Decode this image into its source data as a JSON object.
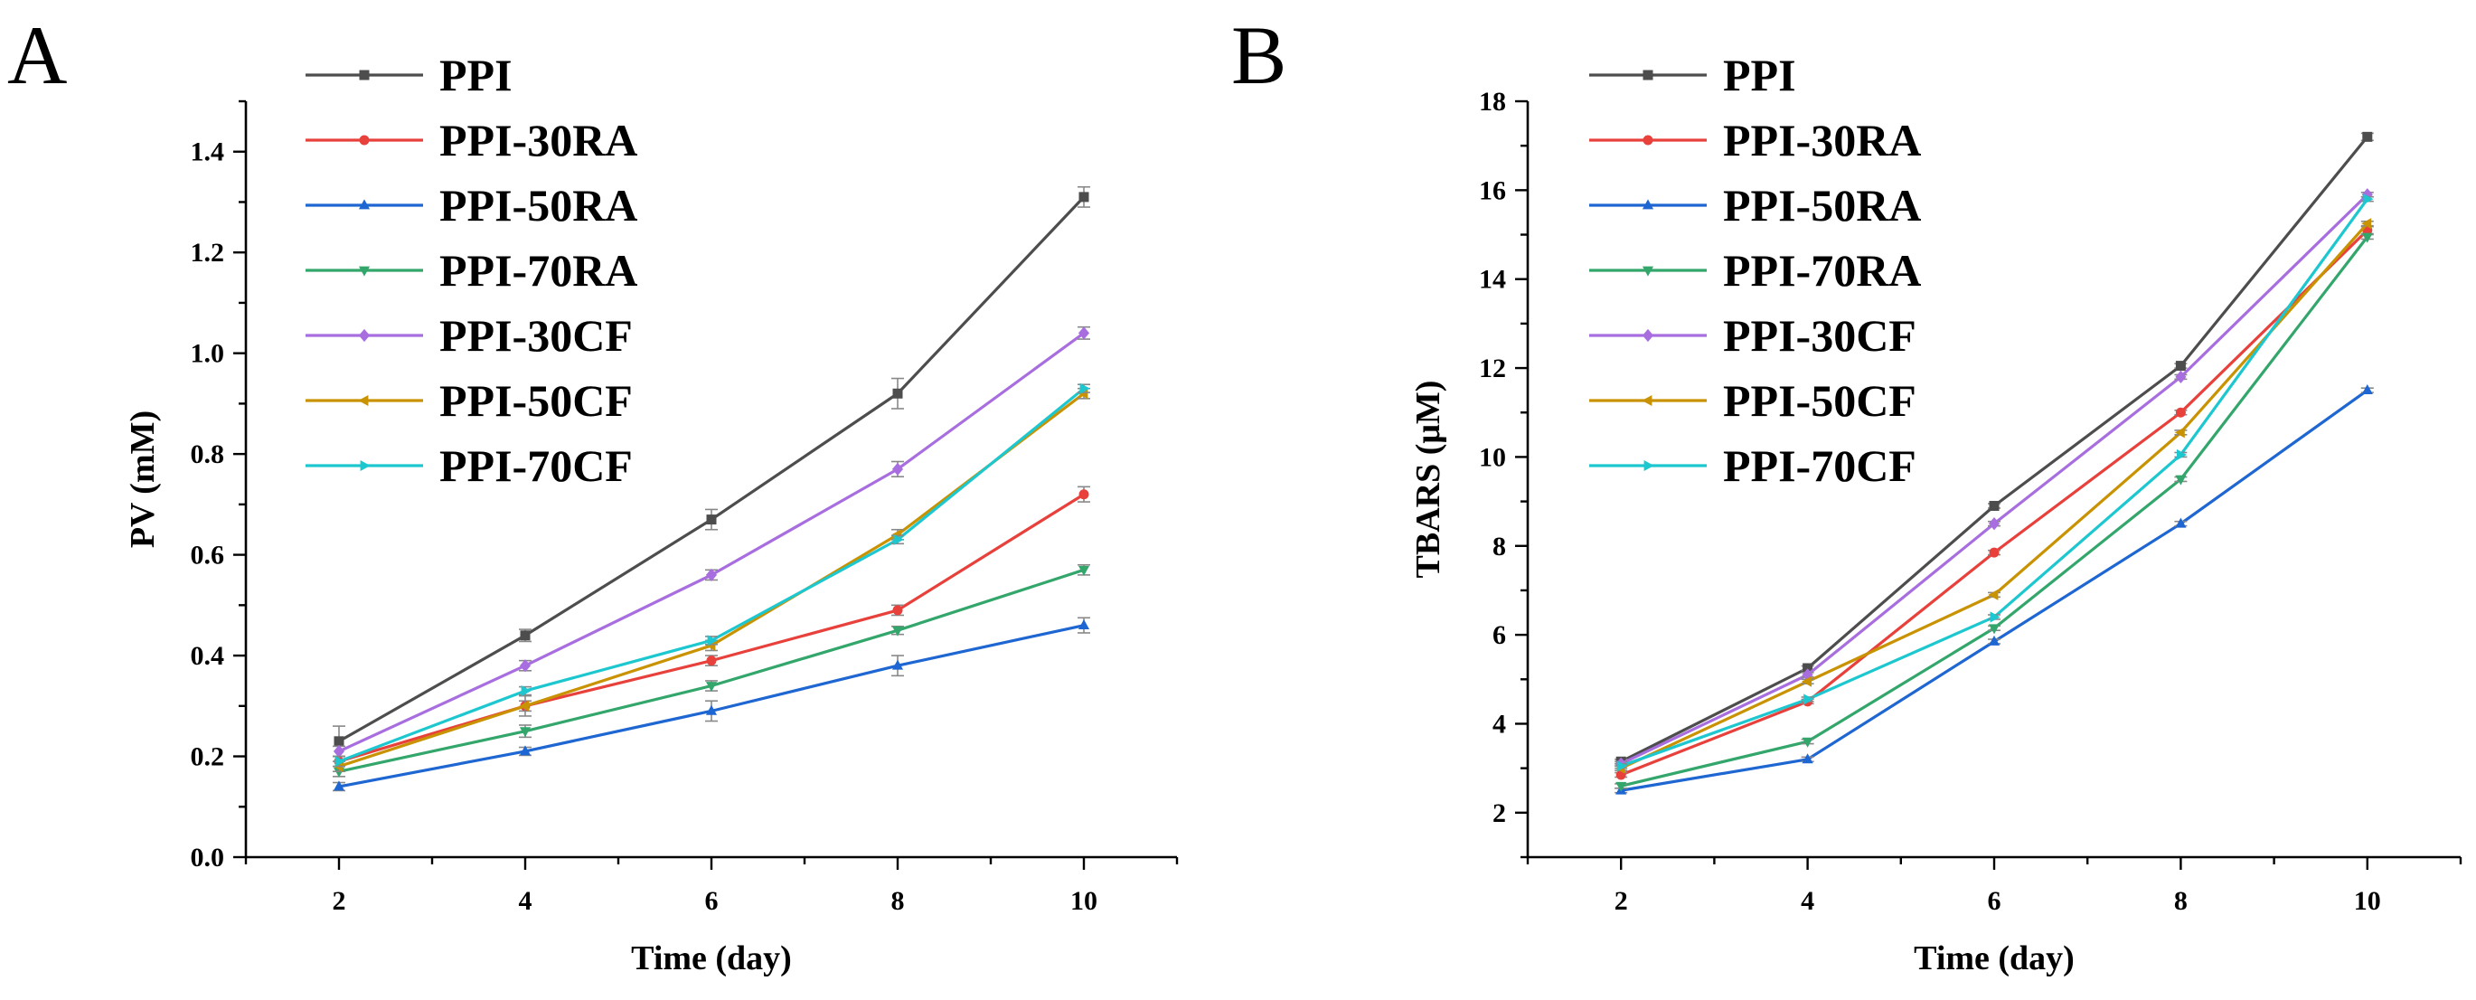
{
  "chart_data": [
    {
      "panel_label": "A",
      "type": "line",
      "xlabel": "Time (day)",
      "ylabel": "PV (mM)",
      "x": [
        2,
        4,
        6,
        8,
        10
      ],
      "xlim": [
        1,
        11
      ],
      "ylim": [
        0,
        1.5
      ],
      "xticks": [
        2,
        4,
        6,
        8,
        10
      ],
      "xtick_labels": [
        "2",
        "4",
        "6",
        "8",
        "10"
      ],
      "yticks": [
        0,
        0.2,
        0.4,
        0.6,
        0.8,
        1.0,
        1.2,
        1.4
      ],
      "ytick_labels": [
        "0.0",
        "0.2",
        "0.4",
        "0.6",
        "0.8",
        "1.0",
        "1.2",
        "1.4"
      ],
      "legend_position": "top-left",
      "series": [
        {
          "name": "PPI",
          "color": "#4d4d4d",
          "marker": "square",
          "values": [
            0.23,
            0.44,
            0.67,
            0.92,
            1.31
          ],
          "errors": [
            0.03,
            0.012,
            0.02,
            0.03,
            0.02
          ]
        },
        {
          "name": "PPI-30RA",
          "color": "#e8413c",
          "marker": "circle",
          "values": [
            0.19,
            0.3,
            0.39,
            0.49,
            0.72
          ],
          "errors": [
            0.01,
            0.01,
            0.01,
            0.01,
            0.015
          ]
        },
        {
          "name": "PPI-50RA",
          "color": "#1e66d1",
          "marker": "triangle-up",
          "values": [
            0.14,
            0.21,
            0.29,
            0.38,
            0.46
          ],
          "errors": [
            0.008,
            0.008,
            0.02,
            0.02,
            0.015
          ]
        },
        {
          "name": "PPI-70RA",
          "color": "#33a66b",
          "marker": "triangle-down",
          "values": [
            0.17,
            0.25,
            0.34,
            0.45,
            0.57
          ],
          "errors": [
            0.01,
            0.012,
            0.01,
            0.008,
            0.01
          ]
        },
        {
          "name": "PPI-30CF",
          "color": "#a86ee0",
          "marker": "diamond",
          "values": [
            0.21,
            0.38,
            0.56,
            0.77,
            1.04
          ],
          "errors": [
            0.01,
            0.01,
            0.01,
            0.015,
            0.012
          ]
        },
        {
          "name": "PPI-50CF",
          "color": "#c99200",
          "marker": "triangle-left",
          "values": [
            0.18,
            0.3,
            0.42,
            0.64,
            0.92
          ],
          "errors": [
            0.01,
            0.02,
            0.01,
            0.01,
            0.01
          ]
        },
        {
          "name": "PPI-70CF",
          "color": "#1dc7cf",
          "marker": "triangle-right",
          "values": [
            0.19,
            0.33,
            0.43,
            0.63,
            0.93
          ],
          "errors": [
            0.01,
            0.008,
            0.008,
            0.008,
            0.008
          ]
        }
      ]
    },
    {
      "panel_label": "B",
      "type": "line",
      "xlabel": "Time (day)",
      "ylabel": "TBARS (μM)",
      "x": [
        2,
        4,
        6,
        8,
        10
      ],
      "xlim": [
        1,
        11
      ],
      "ylim": [
        1,
        18
      ],
      "xticks": [
        2,
        4,
        6,
        8,
        10
      ],
      "xtick_labels": [
        "2",
        "4",
        "6",
        "8",
        "10"
      ],
      "yticks": [
        2,
        4,
        6,
        8,
        10,
        12,
        14,
        16,
        18
      ],
      "ytick_labels": [
        "2",
        "4",
        "6",
        "8",
        "10",
        "12",
        "14",
        "16",
        "18"
      ],
      "legend_position": "top-left",
      "series": [
        {
          "name": "PPI",
          "color": "#4d4d4d",
          "marker": "square",
          "values": [
            3.15,
            5.25,
            8.9,
            12.05,
            17.2
          ],
          "errors": [
            0.05,
            0.05,
            0.05,
            0.05,
            0.08
          ]
        },
        {
          "name": "PPI-30RA",
          "color": "#e8413c",
          "marker": "circle",
          "values": [
            2.85,
            4.5,
            7.85,
            11.0,
            15.1
          ],
          "errors": [
            0.05,
            0.05,
            0.05,
            0.05,
            0.08
          ]
        },
        {
          "name": "PPI-50RA",
          "color": "#1e66d1",
          "marker": "triangle-up",
          "values": [
            2.5,
            3.2,
            5.85,
            8.5,
            11.5
          ],
          "errors": [
            0.05,
            0.05,
            0.05,
            0.05,
            0.05
          ]
        },
        {
          "name": "PPI-70RA",
          "color": "#33a66b",
          "marker": "triangle-down",
          "values": [
            2.6,
            3.6,
            6.15,
            9.5,
            14.95
          ],
          "errors": [
            0.05,
            0.05,
            0.05,
            0.05,
            0.05
          ]
        },
        {
          "name": "PPI-30CF",
          "color": "#a86ee0",
          "marker": "diamond",
          "values": [
            3.1,
            5.1,
            8.5,
            11.8,
            15.9
          ],
          "errors": [
            0.05,
            0.05,
            0.05,
            0.05,
            0.05
          ]
        },
        {
          "name": "PPI-50CF",
          "color": "#c99200",
          "marker": "triangle-left",
          "values": [
            3.0,
            4.95,
            6.9,
            10.55,
            15.25
          ],
          "errors": [
            0.05,
            0.05,
            0.05,
            0.05,
            0.05
          ]
        },
        {
          "name": "PPI-70CF",
          "color": "#1dc7cf",
          "marker": "triangle-right",
          "values": [
            3.05,
            4.55,
            6.4,
            10.05,
            15.8
          ],
          "errors": [
            0.05,
            0.05,
            0.05,
            0.05,
            0.05
          ]
        }
      ]
    }
  ]
}
